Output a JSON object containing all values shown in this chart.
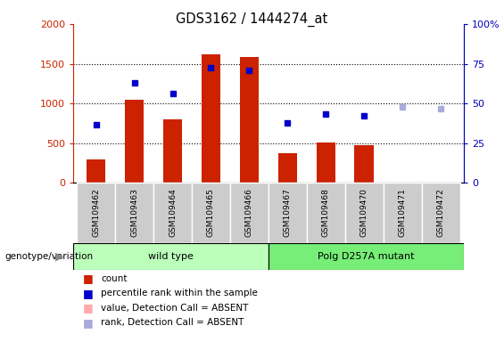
{
  "title": "GDS3162 / 1444274_at",
  "samples": [
    "GSM109462",
    "GSM109463",
    "GSM109464",
    "GSM109465",
    "GSM109466",
    "GSM109467",
    "GSM109468",
    "GSM109470",
    "GSM109471",
    "GSM109472"
  ],
  "count_values": [
    300,
    1050,
    800,
    1620,
    1580,
    380,
    510,
    470,
    null,
    null
  ],
  "count_colors": [
    "#cc2200",
    "#cc2200",
    "#cc2200",
    "#cc2200",
    "#cc2200",
    "#cc2200",
    "#cc2200",
    "#cc2200",
    "#ffaaaa",
    "#ffaaaa"
  ],
  "percentile_values": [
    730,
    1260,
    1130,
    1450,
    1420,
    760,
    870,
    840,
    null,
    null
  ],
  "rank_absent_values": [
    null,
    null,
    null,
    null,
    null,
    null,
    null,
    null,
    960,
    930
  ],
  "ylim_left": [
    0,
    2000
  ],
  "ylim_right": [
    0,
    100
  ],
  "left_ticks": [
    0,
    500,
    1000,
    1500,
    2000
  ],
  "right_ticks": [
    0,
    25,
    50,
    75,
    100
  ],
  "genotype_groups": [
    {
      "label": "wild type",
      "start": 0,
      "end": 5,
      "color": "#bbffbb"
    },
    {
      "label": "Polg D257A mutant",
      "start": 5,
      "end": 10,
      "color": "#77ee77"
    }
  ],
  "genotype_label": "genotype/variation",
  "legend_items": [
    {
      "label": "count",
      "color": "#cc2200"
    },
    {
      "label": "percentile rank within the sample",
      "color": "#0000cc"
    },
    {
      "label": "value, Detection Call = ABSENT",
      "color": "#ffaaaa"
    },
    {
      "label": "rank, Detection Call = ABSENT",
      "color": "#aaaadd"
    }
  ],
  "bar_width": 0.5,
  "tick_label_color_left": "#cc2200",
  "tick_label_color_right": "#0000bb"
}
